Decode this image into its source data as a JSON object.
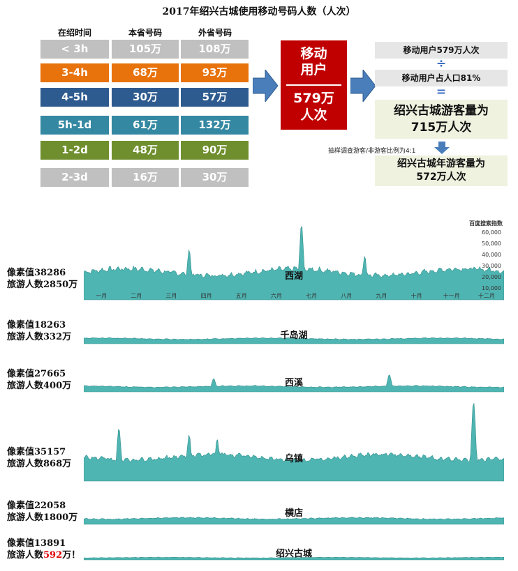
{
  "title": "2017年绍兴古城使用移动号码人数（人次）",
  "table": {
    "headers": [
      "在绍时间",
      "本省号码",
      "外省号码"
    ],
    "rows": [
      {
        "duration": "< 3h",
        "local": "105万",
        "other": "108万",
        "color": "#c0c0c0"
      },
      {
        "duration": "3-4h",
        "local": "68万",
        "other": "93万",
        "color": "#e8720c"
      },
      {
        "duration": "4-5h",
        "local": "30万",
        "other": "57万",
        "color": "#2e5b8f"
      },
      {
        "duration": "5h-1d",
        "local": "61万",
        "other": "132万",
        "color": "#3488a2"
      },
      {
        "duration": "1-2d",
        "local": "48万",
        "other": "90万",
        "color": "#6f8f2e"
      },
      {
        "duration": "2-3d",
        "local": "16万",
        "other": "30万",
        "color": "#c0c0c0"
      }
    ]
  },
  "mobile_box": {
    "line1": "移动",
    "line2": "用户",
    "line3": "579万",
    "line4": "人次"
  },
  "calc": {
    "mobile_users": "移动用户579万人次",
    "divide": "÷",
    "share": "移动用户占人口81%",
    "equals": "=",
    "visitors_line1": "绍兴古城游客量为",
    "visitors_line2": "715万人次",
    "note": "抽样调查游客/非游客比例为4:1",
    "annual_line1": "绍兴古城年游客量为",
    "annual_line2": "572万人次"
  },
  "chart_data": {
    "type": "area",
    "title": "",
    "ylabel": "百度搜索指数",
    "yticks": [
      "60,000",
      "50,000",
      "40,000",
      "30,000",
      "20,000",
      "10,000"
    ],
    "months": [
      "一月",
      "二月",
      "三月",
      "四月",
      "五月",
      "六月",
      "七月",
      "八月",
      "九月",
      "十月",
      "十一月",
      "十二月"
    ],
    "fill_color": "#4fb5b2",
    "series": [
      {
        "name": "西湖",
        "pixel_value": "像素值38286",
        "visitors_label": "旅游人数",
        "visitors": "2850万",
        "visitors_suffix": "",
        "baseline_index": 22000,
        "spikes": [
          {
            "month": 6.2,
            "value": 60000
          },
          {
            "month": 3.0,
            "value": 40000
          },
          {
            "month": 8.0,
            "value": 35000
          }
        ]
      },
      {
        "name": "千岛湖",
        "pixel_value": "像素值18263",
        "visitors_label": "旅游人数",
        "visitors": "332万",
        "visitors_suffix": "",
        "baseline_index": 10000,
        "spikes": []
      },
      {
        "name": "西溪",
        "pixel_value": "像素值27665",
        "visitors_label": "旅游人数",
        "visitors": "400万",
        "visitors_suffix": "",
        "baseline_index": 8000,
        "spikes": [
          {
            "month": 3.7,
            "value": 20000
          },
          {
            "month": 8.7,
            "value": 26000
          }
        ]
      },
      {
        "name": "乌镇",
        "pixel_value": "像素值35157",
        "visitors_label": "旅游人数",
        "visitors": "868万",
        "visitors_suffix": "",
        "baseline_index": 18000,
        "spikes": [
          {
            "month": 1.0,
            "value": 40000
          },
          {
            "month": 3.0,
            "value": 35000
          },
          {
            "month": 3.8,
            "value": 32000
          },
          {
            "month": 11.1,
            "value": 60000
          }
        ]
      },
      {
        "name": "横店",
        "pixel_value": "像素值22058",
        "visitors_label": "旅游人数",
        "visitors": "1800万",
        "visitors_suffix": "",
        "baseline_index": 12000,
        "spikes": []
      },
      {
        "name": "绍兴古城",
        "pixel_value": "像素值13891",
        "visitors_label": "旅游人数",
        "visitors": "592",
        "visitors_suffix": "万！",
        "baseline_index": 6000,
        "spikes": []
      }
    ]
  }
}
